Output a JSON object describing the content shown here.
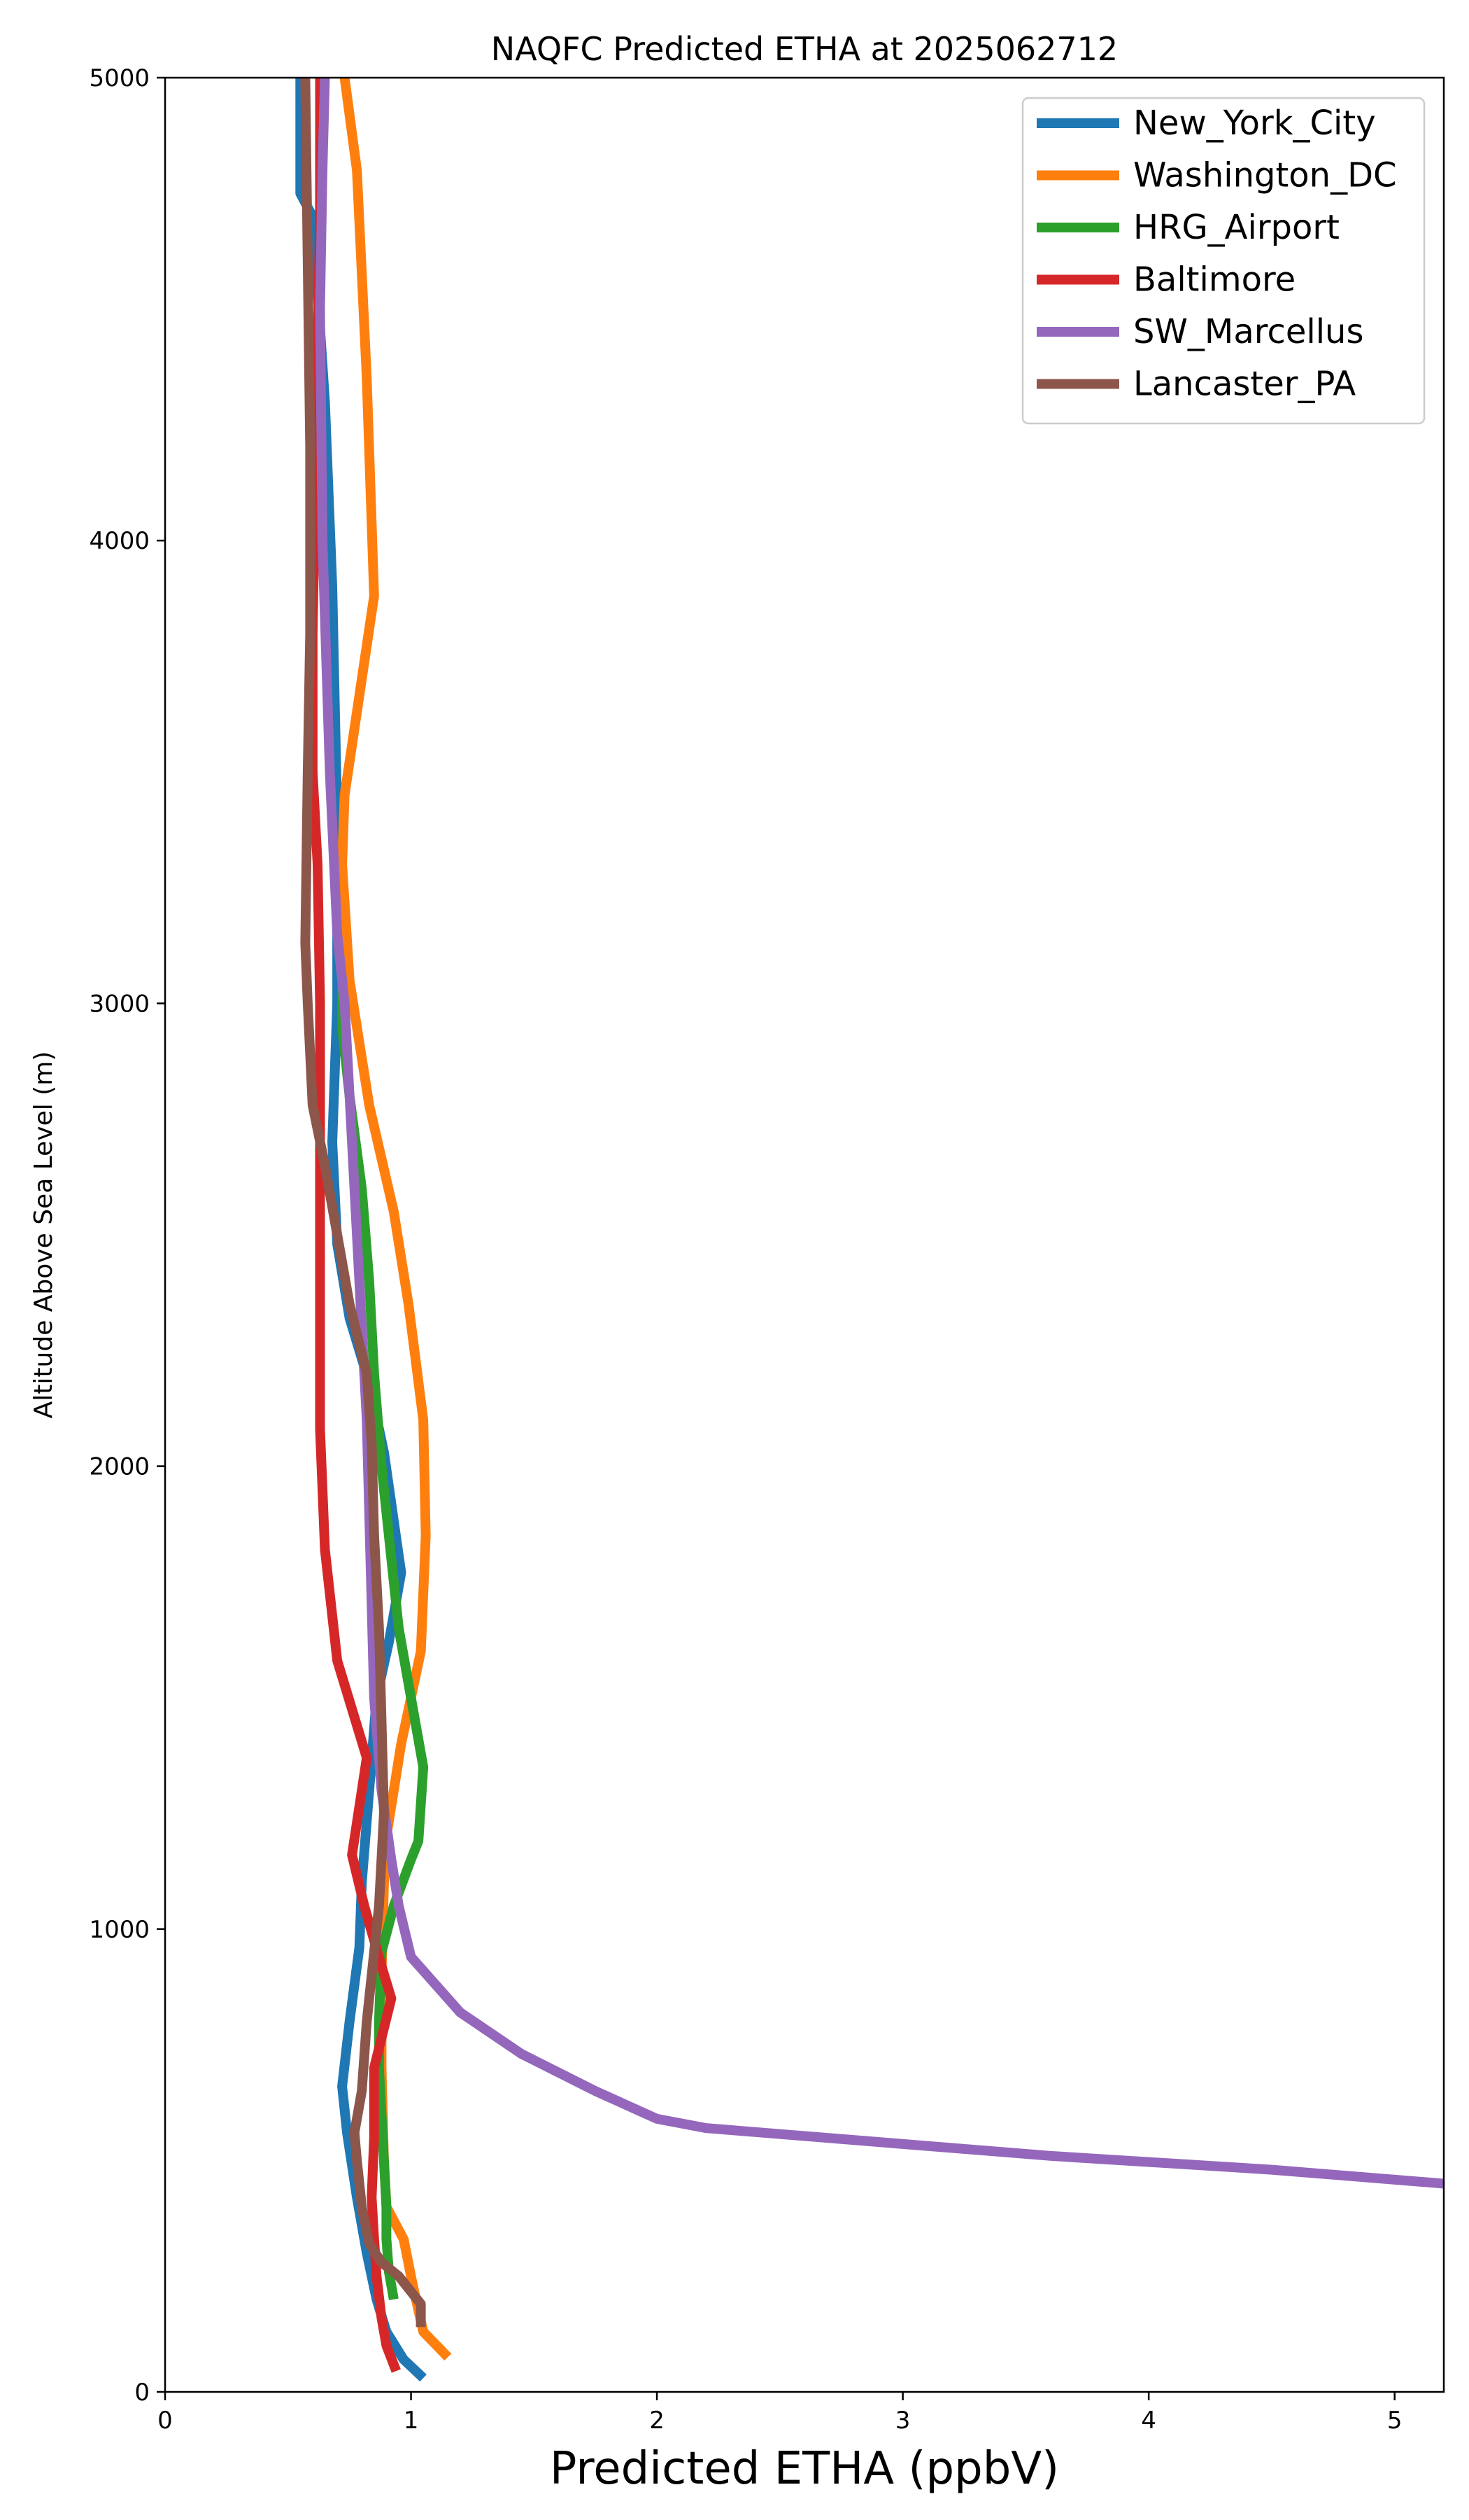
{
  "chart_data": {
    "type": "line",
    "title": "NAQFC Predicted ETHA at 2025062712",
    "xlabel": "Predicted ETHA (ppbV)",
    "ylabel": "Altitude Above Sea Level (m)",
    "xlim": [
      0,
      5.2
    ],
    "ylim": [
      0,
      5000
    ],
    "x_ticks": [
      "0",
      "1",
      "2",
      "3",
      "4",
      "5"
    ],
    "y_ticks": [
      "0",
      "1000",
      "2000",
      "3000",
      "4000",
      "5000"
    ],
    "x_tick_values": [
      0,
      1,
      2,
      3,
      4,
      5
    ],
    "y_tick_values": [
      0,
      1000,
      2000,
      3000,
      4000,
      5000
    ],
    "grid": false,
    "legend_position": "top-right",
    "series": [
      {
        "name": "New_York_City",
        "color": "#1f77b4",
        "points": [
          [
            1.05,
            30
          ],
          [
            0.97,
            70
          ],
          [
            0.9,
            130
          ],
          [
            0.86,
            200
          ],
          [
            0.82,
            300
          ],
          [
            0.78,
            420
          ],
          [
            0.74,
            560
          ],
          [
            0.72,
            660
          ],
          [
            0.75,
            800
          ],
          [
            0.79,
            960
          ],
          [
            0.8,
            1100
          ],
          [
            0.83,
            1300
          ],
          [
            0.86,
            1500
          ],
          [
            0.91,
            1620
          ],
          [
            0.96,
            1770
          ],
          [
            0.89,
            2030
          ],
          [
            0.83,
            2180
          ],
          [
            0.75,
            2320
          ],
          [
            0.7,
            2480
          ],
          [
            0.68,
            2700
          ],
          [
            0.7,
            3000
          ],
          [
            0.7,
            3400
          ],
          [
            0.68,
            3900
          ],
          [
            0.65,
            4300
          ],
          [
            0.6,
            4700
          ],
          [
            0.55,
            4750
          ],
          [
            0.55,
            5000
          ]
        ]
      },
      {
        "name": "Washington_DC",
        "color": "#ff7f0e",
        "points": [
          [
            1.15,
            75
          ],
          [
            1.05,
            130
          ],
          [
            1.02,
            200
          ],
          [
            1.0,
            250
          ],
          [
            0.97,
            330
          ],
          [
            0.9,
            400
          ],
          [
            0.89,
            500
          ],
          [
            0.88,
            700
          ],
          [
            0.88,
            900
          ],
          [
            0.89,
            1100
          ],
          [
            0.9,
            1200
          ],
          [
            0.96,
            1400
          ],
          [
            1.04,
            1600
          ],
          [
            1.06,
            1850
          ],
          [
            1.05,
            2100
          ],
          [
            0.99,
            2350
          ],
          [
            0.93,
            2550
          ],
          [
            0.83,
            2780
          ],
          [
            0.75,
            3050
          ],
          [
            0.72,
            3300
          ],
          [
            0.73,
            3450
          ],
          [
            0.85,
            3880
          ],
          [
            0.82,
            4350
          ],
          [
            0.78,
            4800
          ],
          [
            0.73,
            5000
          ]
        ]
      },
      {
        "name": "HRG_Airport",
        "color": "#2ca02c",
        "points": [
          [
            0.93,
            200
          ],
          [
            0.91,
            260
          ],
          [
            0.9,
            330
          ],
          [
            0.9,
            400
          ],
          [
            0.89,
            500
          ],
          [
            0.88,
            600
          ],
          [
            0.87,
            700
          ],
          [
            0.87,
            800
          ],
          [
            0.88,
            950
          ],
          [
            0.93,
            1050
          ],
          [
            1.0,
            1150
          ],
          [
            1.03,
            1190
          ],
          [
            1.05,
            1350
          ],
          [
            1.0,
            1500
          ],
          [
            0.95,
            1650
          ],
          [
            0.92,
            1800
          ],
          [
            0.88,
            2000
          ],
          [
            0.85,
            2200
          ],
          [
            0.83,
            2400
          ],
          [
            0.8,
            2600
          ],
          [
            0.75,
            2800
          ],
          [
            0.72,
            2950
          ],
          [
            0.72,
            3050
          ]
        ]
      },
      {
        "name": "Baltimore",
        "color": "#d62728",
        "points": [
          [
            0.94,
            45
          ],
          [
            0.9,
            100
          ],
          [
            0.88,
            160
          ],
          [
            0.86,
            250
          ],
          [
            0.85,
            330
          ],
          [
            0.84,
            420
          ],
          [
            0.85,
            550
          ],
          [
            0.85,
            700
          ],
          [
            0.92,
            850
          ],
          [
            0.88,
            920
          ],
          [
            0.81,
            1050
          ],
          [
            0.76,
            1160
          ],
          [
            0.82,
            1370
          ],
          [
            0.7,
            1580
          ],
          [
            0.65,
            1820
          ],
          [
            0.63,
            2080
          ],
          [
            0.63,
            2500
          ],
          [
            0.63,
            3000
          ],
          [
            0.62,
            3300
          ],
          [
            0.6,
            3500
          ],
          [
            0.6,
            3800
          ],
          [
            0.61,
            4100
          ],
          [
            0.62,
            4400
          ],
          [
            0.63,
            4700
          ],
          [
            0.63,
            5000
          ]
        ]
      },
      {
        "name": "SW_Marcellus",
        "color": "#9467bd",
        "points": [
          [
            5.2,
            450
          ],
          [
            4.5,
            480
          ],
          [
            3.6,
            510
          ],
          [
            2.9,
            540
          ],
          [
            2.2,
            570
          ],
          [
            2.0,
            590
          ],
          [
            1.75,
            650
          ],
          [
            1.45,
            730
          ],
          [
            1.2,
            820
          ],
          [
            1.0,
            940
          ],
          [
            0.95,
            1050
          ],
          [
            0.92,
            1150
          ],
          [
            0.88,
            1300
          ],
          [
            0.85,
            1500
          ],
          [
            0.84,
            1700
          ],
          [
            0.83,
            1900
          ],
          [
            0.82,
            2100
          ],
          [
            0.8,
            2300
          ],
          [
            0.78,
            2500
          ],
          [
            0.75,
            2800
          ],
          [
            0.73,
            3000
          ],
          [
            0.7,
            3150
          ],
          [
            0.67,
            3500
          ],
          [
            0.64,
            4000
          ],
          [
            0.63,
            4500
          ],
          [
            0.64,
            4800
          ],
          [
            0.65,
            5000
          ]
        ]
      },
      {
        "name": "Lancaster_PA",
        "color": "#8c564b",
        "points": [
          [
            1.04,
            140
          ],
          [
            1.04,
            190
          ],
          [
            0.95,
            250
          ],
          [
            0.88,
            280
          ],
          [
            0.83,
            320
          ],
          [
            0.8,
            400
          ],
          [
            0.78,
            500
          ],
          [
            0.77,
            560
          ],
          [
            0.8,
            650
          ],
          [
            0.82,
            800
          ],
          [
            0.85,
            950
          ],
          [
            0.87,
            1050
          ],
          [
            0.89,
            1250
          ],
          [
            0.88,
            1450
          ],
          [
            0.87,
            1650
          ],
          [
            0.85,
            1850
          ],
          [
            0.84,
            2050
          ],
          [
            0.82,
            2200
          ],
          [
            0.75,
            2350
          ],
          [
            0.7,
            2500
          ],
          [
            0.65,
            2650
          ],
          [
            0.6,
            2780
          ],
          [
            0.58,
            3000
          ],
          [
            0.57,
            3130
          ],
          [
            0.58,
            3500
          ],
          [
            0.59,
            3800
          ],
          [
            0.59,
            4200
          ],
          [
            0.58,
            4600
          ],
          [
            0.57,
            5000
          ]
        ]
      }
    ]
  }
}
